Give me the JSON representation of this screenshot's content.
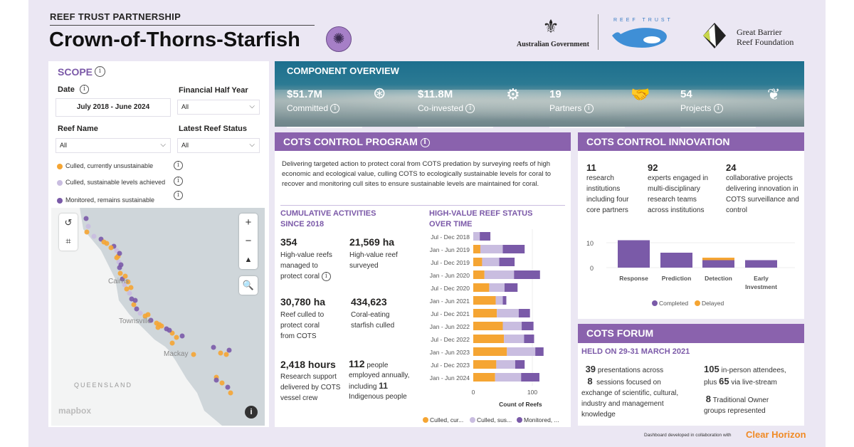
{
  "header": {
    "kicker": "REEF TRUST PARTNERSHIP",
    "title": "Crown-of-Thorns-Starfish"
  },
  "logos": {
    "gov": "Australian Government",
    "reef_trust": "REEF TRUST",
    "gbrf_line1": "Great Barrier",
    "gbrf_line2": "Reef Foundation"
  },
  "scope": {
    "title": "SCOPE",
    "date_label": "Date",
    "date_value": "July 2018 - June 2024",
    "fhy_label": "Financial Half Year",
    "fhy_value": "All",
    "reef_label": "Reef Name",
    "reef_value": "All",
    "status_label": "Latest Reef Status",
    "status_value": "All",
    "legend": [
      {
        "label": "Culled, currently unsustainable",
        "color": "#f5a533"
      },
      {
        "label": "Culled, sustainable levels achieved",
        "color": "#c9bde0"
      },
      {
        "label": "Monitored, remains sustainable",
        "color": "#7a5aa8"
      }
    ]
  },
  "map": {
    "places": [
      "Cairns",
      "Townsville",
      "Mackay",
      "QUEENSLAND"
    ],
    "attribution": "mapbox"
  },
  "overview": {
    "title": "COMPONENT OVERVIEW",
    "kpis": [
      {
        "value": "$51.7M",
        "label": "Committed"
      },
      {
        "value": "$11.8M",
        "label": "Co-invested"
      },
      {
        "value": "19",
        "label": "Partners"
      },
      {
        "value": "54",
        "label": "Projects"
      }
    ]
  },
  "program": {
    "title": "COTS CONTROL PROGRAM",
    "description": "Delivering targeted action to protect coral from COTS predation by surveying reefs of high economic and ecological value, culling COTS to ecologically sustainable levels for coral to recover and monitoring cull sites to ensure sustainable levels are maintained for coral.",
    "cumulative_title_1": "CUMULATIVE ACTIVITIES",
    "cumulative_title_2": "SINCE 2018",
    "stats": [
      {
        "value": "354",
        "text": "High-value reefs managed to protect coral"
      },
      {
        "value": "21,569 ha",
        "text": "High-value reef surveyed"
      },
      {
        "value": "30,780 ha",
        "text": "Reef culled to protect coral from COTS"
      },
      {
        "value": "434,623",
        "text": "Coral-eating starfish culled"
      },
      {
        "value": "2,418 hours",
        "text": "Research support delivered by COTS vessel crew"
      }
    ],
    "people": {
      "value": "112",
      "t1": "people",
      "t2": "employed annually,",
      "t3": "including",
      "value2": "11",
      "t4": "Indigenous people"
    }
  },
  "innovation": {
    "title": "COTS CONTROL INNOVATION",
    "stats": [
      {
        "value": "11",
        "text": "research institutions including four core partners"
      },
      {
        "value": "92",
        "text": "experts engaged in multi-disciplinary research teams across institutions"
      },
      {
        "value": "24",
        "text": "collaborative projects delivering innovation in COTS surveillance and control"
      }
    ]
  },
  "forum": {
    "title": "COTS FORUM",
    "held": "HELD ON 29-31 MARCH 2021",
    "n1": "39",
    "t1": "presentations across",
    "n2": "8",
    "t2": "sessions focused on",
    "t3": "exchange of scientific, cultural, industry and management knowledge",
    "n3": "105",
    "t4": "in-person attendees,",
    "t5": "plus",
    "n4": "65",
    "t6": "via live-stream",
    "n5": "8",
    "t7": "Traditional Owner groups represented"
  },
  "footer": {
    "text": "Dashboard developed in collaboration with",
    "brand": "Clear Horizon"
  },
  "chart_data": [
    {
      "type": "bar",
      "orientation": "horizontal",
      "stacked": true,
      "title": "HIGH-VALUE REEF STATUS OVER TIME",
      "xlabel": "Count of Reefs",
      "xlim": [
        0,
        115
      ],
      "xticks": [
        "0",
        "100"
      ],
      "categories": [
        "Jul - Dec 2018",
        "Jan - Jun 2019",
        "Jul - Dec 2019",
        "Jan - Jun 2020",
        "Jul - Dec 2020",
        "Jan - Jun 2021",
        "Jul - Dec 2021",
        "Jan - Jun 2022",
        "Jul - Dec 2022",
        "Jan - Jun 2023",
        "Jul - Dec 2023",
        "Jan - Jun 2024"
      ],
      "series": [
        {
          "name": "Culled, cur...",
          "color": "#f5a533",
          "values": [
            0,
            12,
            15,
            19,
            27,
            38,
            40,
            50,
            52,
            57,
            39,
            37
          ]
        },
        {
          "name": "Culled, sus...",
          "color": "#c9bde0",
          "values": [
            11,
            38,
            29,
            50,
            26,
            12,
            37,
            32,
            34,
            48,
            32,
            44
          ]
        },
        {
          "name": "Monitored, ...",
          "color": "#7a5aa8",
          "values": [
            18,
            37,
            26,
            44,
            22,
            6,
            19,
            20,
            17,
            14,
            16,
            31
          ]
        }
      ],
      "legend": "bottom"
    },
    {
      "type": "bar",
      "stacked": true,
      "title": "COTS CONTROL INNOVATION projects",
      "ylim": [
        0,
        12
      ],
      "yticks": [
        "0",
        "10"
      ],
      "categories": [
        "Response",
        "Prediction",
        "Detection",
        "Early Investment"
      ],
      "series": [
        {
          "name": "Completed",
          "color": "#7a5aa8",
          "values": [
            11,
            6,
            3,
            3
          ]
        },
        {
          "name": "Delayed",
          "color": "#f5a533",
          "values": [
            0,
            0,
            1,
            0
          ]
        }
      ],
      "legend": "bottom"
    }
  ]
}
